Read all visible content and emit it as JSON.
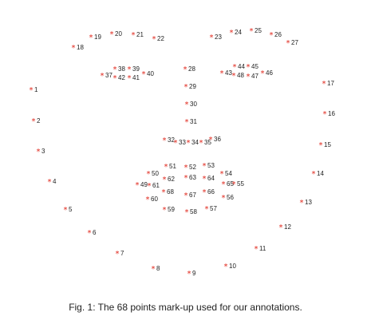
{
  "marker_color": "#e0261a",
  "marker_glyph": "*",
  "text_color": "#222222",
  "landmarks": [
    {
      "id": "1"
    },
    {
      "id": "2"
    },
    {
      "id": "3"
    },
    {
      "id": "4"
    },
    {
      "id": "5"
    },
    {
      "id": "6"
    },
    {
      "id": "7"
    },
    {
      "id": "8"
    },
    {
      "id": "9"
    },
    {
      "id": "10"
    },
    {
      "id": "11"
    },
    {
      "id": "12"
    },
    {
      "id": "13"
    },
    {
      "id": "14"
    },
    {
      "id": "15"
    },
    {
      "id": "16"
    },
    {
      "id": "17"
    },
    {
      "id": "18"
    },
    {
      "id": "19"
    },
    {
      "id": "20"
    },
    {
      "id": "21"
    },
    {
      "id": "22"
    },
    {
      "id": "23"
    },
    {
      "id": "24"
    },
    {
      "id": "25"
    },
    {
      "id": "26"
    },
    {
      "id": "27"
    },
    {
      "id": "28"
    },
    {
      "id": "29"
    },
    {
      "id": "30"
    },
    {
      "id": "31"
    },
    {
      "id": "32"
    },
    {
      "id": "33"
    },
    {
      "id": "34"
    },
    {
      "id": "35"
    },
    {
      "id": "36"
    },
    {
      "id": "37"
    },
    {
      "id": "38"
    },
    {
      "id": "39"
    },
    {
      "id": "40"
    },
    {
      "id": "41"
    },
    {
      "id": "42"
    },
    {
      "id": "43"
    },
    {
      "id": "44"
    },
    {
      "id": "45"
    },
    {
      "id": "46"
    },
    {
      "id": "47"
    },
    {
      "id": "48"
    },
    {
      "id": "49"
    },
    {
      "id": "50"
    },
    {
      "id": "51"
    },
    {
      "id": "52"
    },
    {
      "id": "53"
    },
    {
      "id": "54"
    },
    {
      "id": "55"
    },
    {
      "id": "56"
    },
    {
      "id": "57"
    },
    {
      "id": "58"
    },
    {
      "id": "59"
    },
    {
      "id": "60"
    },
    {
      "id": "61"
    },
    {
      "id": "62"
    },
    {
      "id": "63"
    },
    {
      "id": "64"
    },
    {
      "id": "65"
    },
    {
      "id": "66"
    },
    {
      "id": "67"
    },
    {
      "id": "68"
    }
  ],
  "caption": "Fig. 1: The 68 points mark-up used for our annotations."
}
